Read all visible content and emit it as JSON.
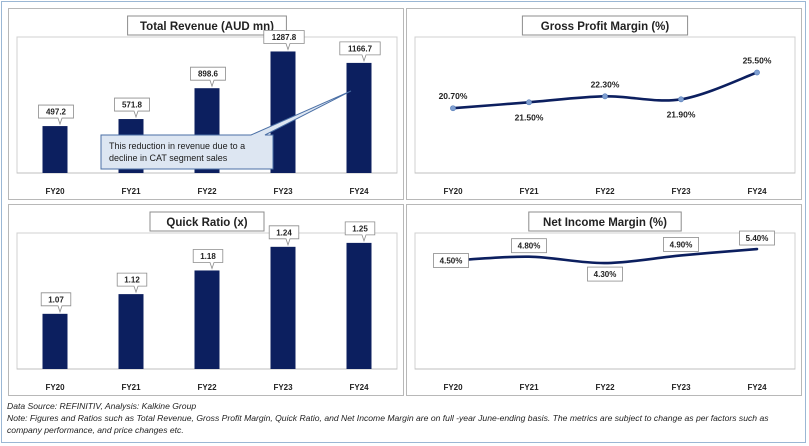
{
  "chart_data": [
    {
      "id": "revenue",
      "type": "bar",
      "title": "Total Revenue (AUD mn)",
      "categories": [
        "FY20",
        "FY21",
        "FY22",
        "FY23",
        "FY24"
      ],
      "values": [
        497.2,
        571.8,
        898.6,
        1287.8,
        1166.7
      ],
      "value_labels": [
        "497.2",
        "571.8",
        "898.6",
        "1287.8",
        "1166.7"
      ],
      "ylim": [
        0,
        1420
      ],
      "annotation": {
        "text_lines": [
          "This reduction in revenue due to a",
          "decline in CAT segment sales"
        ],
        "points_to": "FY24"
      },
      "colors": {
        "bar": "#0c1f5f"
      }
    },
    {
      "id": "gross-margin",
      "type": "line",
      "title": "Gross Profit Margin (%)",
      "categories": [
        "FY20",
        "FY21",
        "FY22",
        "FY23",
        "FY24"
      ],
      "values": [
        20.7,
        21.5,
        22.3,
        21.9,
        25.5
      ],
      "value_labels": [
        "20.70%",
        "21.50%",
        "22.30%",
        "21.90%",
        "25.50%"
      ],
      "label_position": [
        "above",
        "below",
        "above",
        "below",
        "above"
      ],
      "ylim": [
        12,
        30
      ],
      "colors": {
        "line": "#0c1f5f",
        "marker": "#7f9fd1"
      }
    },
    {
      "id": "quick-ratio",
      "type": "bar",
      "title": "Quick Ratio (x)",
      "categories": [
        "FY20",
        "FY21",
        "FY22",
        "FY23",
        "FY24"
      ],
      "values": [
        1.07,
        1.12,
        1.18,
        1.24,
        1.25
      ],
      "value_labels": [
        "1.07",
        "1.12",
        "1.18",
        "1.24",
        "1.25"
      ],
      "ylim": [
        0.93,
        1.27
      ],
      "colors": {
        "bar": "#0c1f5f"
      }
    },
    {
      "id": "net-margin",
      "type": "line",
      "title": "Net Income Margin (%)",
      "categories": [
        "FY20",
        "FY21",
        "FY22",
        "FY23",
        "FY24"
      ],
      "values": [
        4.5,
        4.8,
        4.3,
        4.9,
        5.4
      ],
      "value_labels": [
        "4.50%",
        "4.80%",
        "4.30%",
        "4.90%",
        "5.40%"
      ],
      "label_position": [
        "left",
        "above",
        "below",
        "above",
        "above"
      ],
      "ylim": [
        -4,
        6.5
      ],
      "colors": {
        "line": "#0c1f5f"
      }
    }
  ],
  "notes": {
    "source": "Data Source: REFINITIV, Analysis: Kalkine Group",
    "note": "Note: Figures and Ratios such as Total Revenue, Gross Profit Margin, Quick Ratio, and Net Income Margin are on full -year June-ending basis. The metrics are subject to change as per factors such as company performance, and price changes etc."
  }
}
